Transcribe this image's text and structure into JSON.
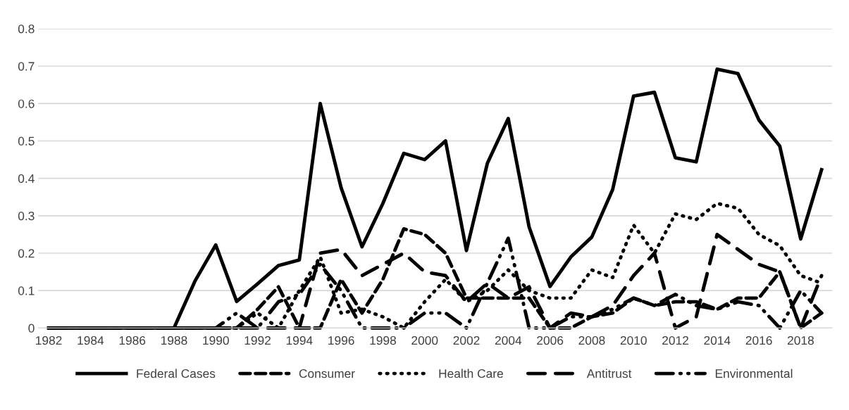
{
  "chart_data": {
    "type": "line",
    "categories": [
      "1982",
      null,
      "1984",
      null,
      "1986",
      null,
      "1988",
      null,
      "1990",
      null,
      "1992",
      null,
      "1994",
      null,
      "1996",
      null,
      "1998",
      null,
      "2000",
      null,
      "2002",
      null,
      "2004",
      null,
      "2006",
      null,
      "2008",
      null,
      "2010",
      null,
      "2012",
      null,
      "2014",
      null,
      "2016",
      null,
      "2018",
      null
    ],
    "ylim": [
      0,
      0.8
    ],
    "yticks": [
      0,
      0.1,
      0.2,
      0.3,
      0.4,
      0.5,
      0.6,
      0.7,
      0.8
    ],
    "grid": "y",
    "legend": "bottom",
    "series": [
      {
        "name": "Federal Cases",
        "color": "#000000",
        "line_style": "solid",
        "values": [
          0,
          0,
          0,
          0,
          0,
          0,
          0,
          0.125,
          0.222,
          0.071,
          0.118,
          0.167,
          0.182,
          0.6,
          0.375,
          0.217,
          0.333,
          0.467,
          0.45,
          0.5,
          0.207,
          0.44,
          0.56,
          0.27,
          0.111,
          0.19,
          0.243,
          0.37,
          0.62,
          0.63,
          0.455,
          0.444,
          0.692,
          0.68,
          0.556,
          0.486,
          0.238,
          0.423
        ]
      },
      {
        "name": "Consumer",
        "color": "#000000",
        "line_style": "dashed",
        "values": [
          0,
          0,
          0,
          0,
          0,
          0,
          0,
          0,
          0,
          0,
          0.05,
          0.11,
          0,
          0,
          0.13,
          0.04,
          0.13,
          0.265,
          0.25,
          0.2,
          0.08,
          0.08,
          0.08,
          0.08,
          0,
          0,
          0.03,
          0.04,
          0.08,
          0.06,
          0.07,
          0.07,
          0.05,
          0.08,
          0.08,
          0.15,
          0,
          0.04
        ]
      },
      {
        "name": "Health Care",
        "color": "#000000",
        "line_style": "dotted",
        "values": [
          0,
          0,
          0,
          0,
          0,
          0,
          0,
          0,
          0,
          0,
          0.04,
          0,
          0.1,
          0.19,
          0.04,
          0.05,
          0.03,
          0,
          0.07,
          0.13,
          0.07,
          0.1,
          0.155,
          0.1,
          0.08,
          0.08,
          0.155,
          0.135,
          0.275,
          0.2,
          0.305,
          0.29,
          0.333,
          0.32,
          0.25,
          0.22,
          0.14,
          0.12
        ]
      },
      {
        "name": "Antitrust",
        "color": "#000000",
        "line_style": "longdash",
        "values": [
          0,
          0,
          0,
          0,
          0,
          0,
          0,
          0,
          0,
          0,
          0,
          0,
          0,
          0.2,
          0.21,
          0.14,
          0.17,
          0.2,
          0.15,
          0.14,
          0.07,
          0.12,
          0.08,
          0.11,
          0,
          0.04,
          0.03,
          0.06,
          0.14,
          0.2,
          0,
          0.03,
          0.25,
          0.21,
          0.17,
          0.15,
          0,
          0.14
        ]
      },
      {
        "name": "Environmental",
        "color": "#000000",
        "line_style": "dashdot",
        "values": [
          0,
          0,
          0,
          0,
          0,
          0,
          0,
          0,
          0,
          0.04,
          0,
          0.07,
          0.09,
          0.17,
          0.1,
          0,
          0,
          0,
          0.04,
          0.04,
          0,
          0.12,
          0.24,
          0,
          0,
          0.03,
          0.03,
          0.05,
          0.08,
          0.06,
          0.09,
          0.06,
          0.05,
          0.07,
          0.06,
          0,
          0.1,
          0.04
        ]
      }
    ]
  }
}
